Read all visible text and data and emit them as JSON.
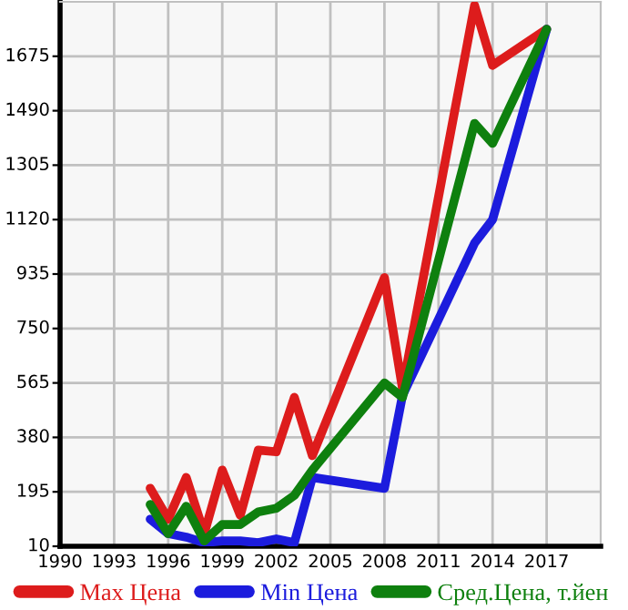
{
  "chart_data": {
    "type": "line",
    "x": [
      1995,
      1996,
      1997,
      1998,
      1999,
      2000,
      2001,
      2002,
      2003,
      2004,
      2008,
      2009,
      2013,
      2014,
      2017
    ],
    "series": [
      {
        "name": "Max Цена",
        "color": "#dd1c1c",
        "values": [
          207,
          102,
          244,
          53,
          269,
          115,
          337,
          331,
          516,
          318,
          923,
          546,
          1848,
          1644,
          1767
        ]
      },
      {
        "name": "Min Цена",
        "color": "#1c1cdd",
        "values": [
          102,
          53,
          41,
          22,
          28,
          28,
          22,
          35,
          22,
          244,
          207,
          522,
          1040,
          1120,
          1767
        ]
      },
      {
        "name": "Сред.Цена, т.йен",
        "color": "#0e800e",
        "values": [
          152,
          53,
          146,
          28,
          84,
          84,
          127,
          139,
          183,
          269,
          565,
          516,
          1447,
          1379,
          1767
        ]
      }
    ],
    "xlim": [
      1990,
      2020
    ],
    "xticks": [
      1990,
      1993,
      1996,
      1999,
      2002,
      2005,
      2008,
      2011,
      2014,
      2017
    ],
    "ylim": [
      10,
      1860
    ],
    "yticks": [
      10,
      195,
      380,
      565,
      750,
      935,
      1120,
      1305,
      1490,
      1675
    ],
    "grid": true,
    "legend": "bottom",
    "marker": "none",
    "line_style": "solid"
  }
}
